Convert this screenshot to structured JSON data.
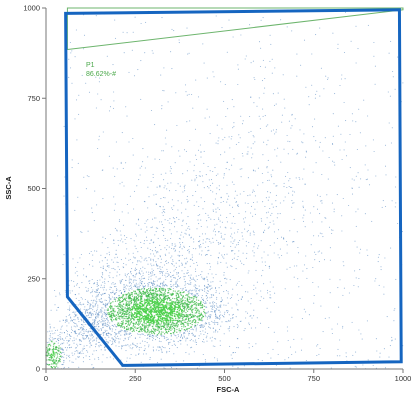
{
  "chart_data": {
    "type": "scatter",
    "subtype": "flow-cytometry-density-dot-plot",
    "xlabel": "FSC-A",
    "ylabel": "SSC-A",
    "xlim": [
      0,
      1000
    ],
    "ylim": [
      0,
      1000
    ],
    "x_ticks": [
      0,
      250,
      500,
      750,
      1000
    ],
    "y_ticks": [
      0,
      250,
      500,
      750,
      1000
    ],
    "grid": false,
    "dot_colors": {
      "sparse": "#3f78b8",
      "dense": "#3db94a",
      "densest": "#4bd04b"
    },
    "density_clusters": [
      {
        "name": "main-population",
        "center": [
          310,
          160
        ],
        "spread": [
          95,
          45
        ],
        "relative_count": 0.46
      },
      {
        "name": "low-fsc-population",
        "center": [
          20,
          40
        ],
        "spread": [
          18,
          30
        ],
        "relative_count": 0.05
      },
      {
        "name": "diagonal-tail",
        "from": [
          100,
          90
        ],
        "to": [
          650,
          550
        ],
        "relative_count": 0.34
      },
      {
        "name": "diffuse-background",
        "xlim": [
          50,
          1000
        ],
        "ylim": [
          0,
          1000
        ],
        "relative_count": 0.15
      }
    ],
    "gates": [
      {
        "name": "P1",
        "label": "P1",
        "percent_label": "86.62%-#",
        "color": "#6db56d",
        "polygon": [
          [
            60,
            885
          ],
          [
            1000,
            995
          ],
          [
            1000,
            1000
          ],
          [
            60,
            1000
          ]
        ]
      },
      {
        "name": "overlay-polygon",
        "label": "",
        "color": "#1565c0",
        "polygon": [
          [
            55,
            985
          ],
          [
            990,
            995
          ],
          [
            995,
            20
          ],
          [
            215,
            10
          ],
          [
            60,
            200
          ]
        ]
      }
    ]
  }
}
